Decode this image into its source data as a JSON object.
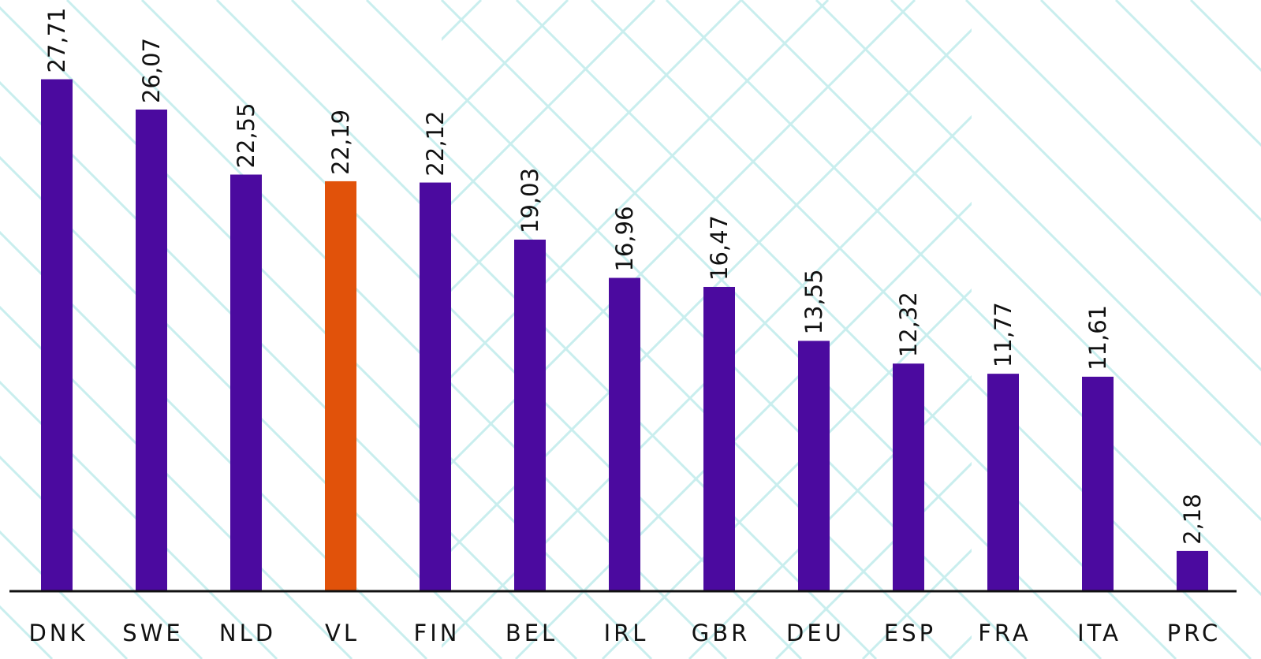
{
  "chart_data": {
    "type": "bar",
    "categories": [
      "DNK",
      "SWE",
      "NLD",
      "VL",
      "FIN",
      "BEL",
      "IRL",
      "GBR",
      "DEU",
      "ESP",
      "FRA",
      "ITA",
      "PRC"
    ],
    "values": [
      27.71,
      26.07,
      22.55,
      22.19,
      22.12,
      19.03,
      16.96,
      16.47,
      13.55,
      12.32,
      11.77,
      11.61,
      2.18
    ],
    "value_labels": [
      "27,71",
      "26,07",
      "22,55",
      "22,19",
      "22,12",
      "19,03",
      "16,96",
      "16,47",
      "13,55",
      "12,32",
      "11,77",
      "11,61",
      "2,18"
    ],
    "colors": [
      "#4b0a9f",
      "#4b0a9f",
      "#4b0a9f",
      "#e1520a",
      "#4b0a9f",
      "#4b0a9f",
      "#4b0a9f",
      "#4b0a9f",
      "#4b0a9f",
      "#4b0a9f",
      "#4b0a9f",
      "#4b0a9f",
      "#4b0a9f"
    ],
    "ylim": [
      0,
      32
    ]
  }
}
